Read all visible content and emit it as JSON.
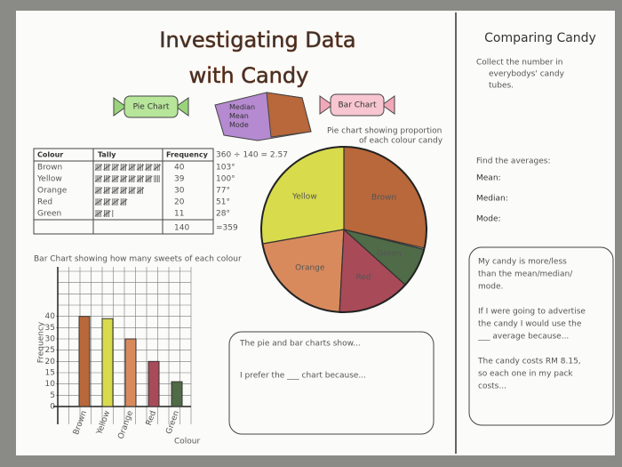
{
  "title": [
    "Investigating Data",
    "with Candy"
  ],
  "candies": [
    "Pie Chart",
    "Median Mean Mode",
    "Bar Chart"
  ],
  "table": {
    "header": [
      "Colour",
      "Tally",
      "Frequency"
    ],
    "formula": "360 ÷ 140 = 2.57",
    "rows": [
      {
        "colour": "Brown",
        "frequency": 40,
        "color": "#b8683a",
        "degrees": {
          "value": 103,
          "label": "103°"
        }
      },
      {
        "colour": "Yellow",
        "frequency": 39,
        "color": "#d8db4c",
        "degrees": {
          "value": 100,
          "label": "100°"
        }
      },
      {
        "colour": "Orange",
        "frequency": 30,
        "color": "#d98a5c",
        "degrees": {
          "value": 77,
          "label": "77°"
        }
      },
      {
        "colour": "Red",
        "frequency": 20,
        "color": "#a94a58",
        "degrees": {
          "value": 51,
          "label": "51°"
        }
      },
      {
        "colour": "Green",
        "frequency": 11,
        "color": "#4f6b47",
        "degrees": {
          "value": 28,
          "label": "28°"
        }
      }
    ],
    "total": 140,
    "total_degrees": "=359"
  },
  "pie": {
    "caption": [
      "Pie chart showing proportion",
      "of each colour candy"
    ]
  },
  "bar_chart": {
    "title": "Bar Chart showing how many sweets of each colour",
    "y_label": "Frequency",
    "x_label": "Colour",
    "ylim": [
      0,
      45
    ],
    "yticks": [
      0,
      5,
      10,
      15,
      20,
      25,
      30,
      35,
      40
    ],
    "grid": true
  },
  "summary_box": [
    "The pie and bar charts show...",
    "I prefer the ___ chart because..."
  ],
  "sidebar": {
    "title": "Comparing Candy",
    "instruction": [
      "Collect the number in",
      "everybodys' candy",
      "tubes."
    ],
    "averages_heading": "Find the averages:",
    "averages": [
      "Mean:",
      "Median:",
      "Mode:"
    ],
    "box": [
      "My candy is more/less",
      "than the mean/median/",
      "mode.",
      "If I were going to advertise",
      "the candy I would use the",
      "___ average because...",
      "The candy costs RM 8.15,",
      "so each one in my pack",
      "costs..."
    ]
  }
}
